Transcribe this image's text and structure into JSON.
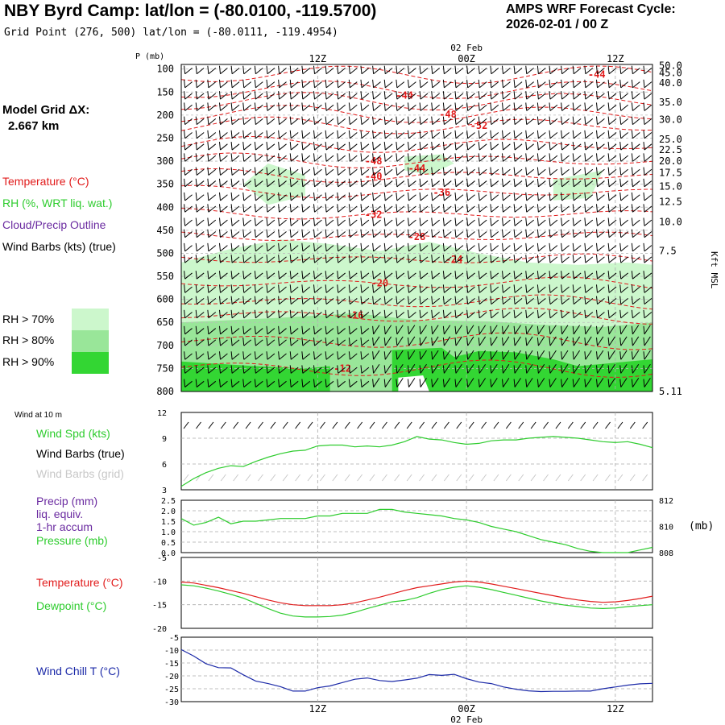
{
  "header": {
    "title": "NBY Byrd Camp:  lat/lon = (-80.0100, -119.5700)",
    "subtitle": "Grid Point (276, 500) lat/lon = (-80.0111, -119.4954)",
    "cycle_line1": "AMPS WRF Forecast Cycle:",
    "cycle_line2": "2026-02-01 / 00  Z",
    "grid_dx_line1": "Model Grid ΔX:",
    "grid_dx_line2": "2.667 km"
  },
  "legend": {
    "temperature": "Temperature (°C)",
    "rh": "RH (%, WRT liq. wat.)",
    "cloud": "Cloud/Precip Outline",
    "wind": "Wind Barbs (kts) (true)",
    "rh70": "RH > 70%",
    "rh80": "RH > 80%",
    "rh90": "RH > 90%"
  },
  "colors": {
    "temperature": "#e11b1b",
    "rh": "#2ecc2e",
    "cloud": "#6a2aa0",
    "rh70": "#ccf7cc",
    "rh80": "#99e699",
    "rh90": "#33d633",
    "wind_chill": "#1c2aa8",
    "grid_barb": "#c8c8c8"
  },
  "chart_data": [
    {
      "type": "heatmap",
      "name": "time-height cross section",
      "p_label": "P (mb)",
      "kft_label": "Kft MSL",
      "time_top_label": "02 Feb",
      "time_labels": [
        "12Z",
        "00Z",
        "12Z"
      ],
      "time_hours": [
        12,
        24,
        36
      ],
      "x_range_hours": [
        1,
        39
      ],
      "pressure_levels": [
        100,
        150,
        200,
        250,
        300,
        350,
        400,
        450,
        500,
        550,
        600,
        650,
        700,
        750,
        800
      ],
      "p_range": [
        90,
        800
      ],
      "kft_values": [
        "50.0",
        "45.0",
        "40.0",
        "35.0",
        "30.0",
        "25.0",
        "22.5",
        "20.0",
        "17.5",
        "15.0",
        "12.5",
        "10.0",
        "7.5",
        "5.11"
      ],
      "kft_pressure": [
        93,
        108,
        130,
        172,
        210,
        253,
        275,
        300,
        325,
        355,
        388,
        432,
        495,
        800
      ],
      "temperature_labels": [
        {
          "text": "-44",
          "hour": 34.5,
          "p": 112
        },
        {
          "text": "-44",
          "hour": 19.0,
          "p": 157
        },
        {
          "text": "-48",
          "hour": 22.5,
          "p": 198
        },
        {
          "text": "-52",
          "hour": 25.0,
          "p": 223
        },
        {
          "text": "-48",
          "hour": 16.5,
          "p": 300
        },
        {
          "text": "-44",
          "hour": 20.0,
          "p": 316
        },
        {
          "text": "-40",
          "hour": 16.5,
          "p": 333
        },
        {
          "text": "-36",
          "hour": 22.0,
          "p": 368
        },
        {
          "text": "-32",
          "hour": 16.5,
          "p": 416
        },
        {
          "text": "-28",
          "hour": 20.0,
          "p": 464
        },
        {
          "text": "-24",
          "hour": 23.0,
          "p": 513
        },
        {
          "text": "-20",
          "hour": 17.0,
          "p": 565
        },
        {
          "text": "-16",
          "hour": 15.0,
          "p": 635
        },
        {
          "text": "-12",
          "hour": 14.0,
          "p": 750
        }
      ]
    },
    {
      "type": "line",
      "name": "wind at 10 m",
      "label": "Wind at 10 m",
      "ylabel": "Wind Spd (kts)",
      "series_names": [
        "Wind Spd (kts)",
        "Wind Barbs (true)",
        "Wind Barbs (grid)"
      ],
      "ylim": [
        3,
        12
      ],
      "yticks": [
        3,
        6,
        9,
        12
      ],
      "x": [
        1,
        2,
        3,
        4,
        5,
        6,
        7,
        8,
        9,
        10,
        11,
        12,
        13,
        14,
        15,
        16,
        17,
        18,
        19,
        20,
        21,
        22,
        23,
        24,
        25,
        26,
        27,
        28,
        29,
        30,
        31,
        32,
        33,
        34,
        35,
        36,
        37,
        38,
        39
      ],
      "values": [
        3.4,
        4.3,
        5.0,
        5.5,
        5.8,
        5.7,
        6.3,
        6.8,
        7.2,
        7.5,
        7.6,
        8.1,
        8.2,
        8.2,
        8.0,
        8.1,
        8.0,
        8.2,
        8.6,
        9.2,
        8.9,
        8.8,
        8.5,
        8.3,
        8.4,
        8.7,
        8.8,
        8.8,
        9.0,
        9.1,
        9.2,
        9.1,
        9.0,
        8.8,
        8.6,
        8.5,
        8.6,
        8.3,
        7.9
      ]
    },
    {
      "type": "line",
      "name": "precip and pressure",
      "labels": [
        "Precip (mm)",
        "liq. equiv.",
        "1-hr accum",
        "Pressure (mb)"
      ],
      "left_ylim": [
        0.0,
        2.5
      ],
      "left_ticks": [
        "0.0",
        "0.5",
        "1.0",
        "1.5",
        "2.0",
        "2.5"
      ],
      "right_ylim": [
        808,
        812
      ],
      "right_ticks": [
        "808",
        "810",
        "812"
      ],
      "right_unit": "(mb)",
      "x": [
        1,
        2,
        3,
        4,
        5,
        6,
        7,
        8,
        9,
        10,
        11,
        12,
        13,
        14,
        15,
        16,
        17,
        18,
        19,
        20,
        21,
        22,
        23,
        24,
        25,
        26,
        27,
        28,
        29,
        30,
        31,
        32,
        33,
        34,
        35,
        36,
        37,
        38,
        39
      ],
      "pressure": [
        810.6,
        810.1,
        810.3,
        810.7,
        810.2,
        810.4,
        810.4,
        810.5,
        810.6,
        810.6,
        810.6,
        810.8,
        810.8,
        811.0,
        811.0,
        811.0,
        811.3,
        811.3,
        811.1,
        811.0,
        810.9,
        810.8,
        810.6,
        810.5,
        810.3,
        810.0,
        809.8,
        809.6,
        809.3,
        809.0,
        808.8,
        808.6,
        808.3,
        808.1,
        808.0,
        808.0,
        808.0,
        808.2,
        808.4
      ]
    },
    {
      "type": "line",
      "name": "temperature and dewpoint",
      "series_names": [
        "Temperature (°C)",
        "Dewpoint (°C)"
      ],
      "ylim": [
        -20,
        -5
      ],
      "yticks": [
        -20,
        -15,
        -10,
        -5
      ],
      "x": [
        1,
        2,
        3,
        4,
        5,
        6,
        7,
        8,
        9,
        10,
        11,
        12,
        13,
        14,
        15,
        16,
        17,
        18,
        19,
        20,
        21,
        22,
        23,
        24,
        25,
        26,
        27,
        28,
        29,
        30,
        31,
        32,
        33,
        34,
        35,
        36,
        37,
        38,
        39
      ],
      "temperature": [
        -10.2,
        -10.4,
        -10.9,
        -11.4,
        -12.0,
        -12.6,
        -13.3,
        -14.0,
        -14.6,
        -15.0,
        -15.2,
        -15.2,
        -15.2,
        -15.0,
        -14.6,
        -14.0,
        -13.4,
        -12.7,
        -12.0,
        -11.4,
        -11.0,
        -10.6,
        -10.2,
        -10.0,
        -10.2,
        -10.6,
        -11.1,
        -11.6,
        -12.1,
        -12.6,
        -13.1,
        -13.6,
        -14.0,
        -14.3,
        -14.5,
        -14.4,
        -14.1,
        -13.7,
        -13.2
      ],
      "dewpoint": [
        -10.8,
        -11.0,
        -11.5,
        -12.1,
        -12.8,
        -13.6,
        -14.7,
        -15.8,
        -16.8,
        -17.4,
        -17.6,
        -17.6,
        -17.5,
        -17.2,
        -16.6,
        -15.8,
        -15.1,
        -14.4,
        -14.1,
        -13.5,
        -12.6,
        -11.8,
        -11.3,
        -11.0,
        -11.3,
        -11.8,
        -12.4,
        -13.0,
        -13.6,
        -14.2,
        -14.7,
        -15.1,
        -15.4,
        -15.7,
        -15.8,
        -15.7,
        -15.4,
        -15.2,
        -15.0
      ]
    },
    {
      "type": "line",
      "name": "wind chill",
      "series_names": [
        "Wind Chill T (°C)"
      ],
      "ylim": [
        -30,
        -5
      ],
      "yticks": [
        -30,
        -25,
        -20,
        -15,
        -10,
        -5
      ],
      "bottom_time_labels": [
        "12Z",
        "00Z",
        "12Z"
      ],
      "bottom_date": "02 Feb",
      "x": [
        1,
        2,
        3,
        4,
        5,
        6,
        7,
        8,
        9,
        10,
        11,
        12,
        13,
        14,
        15,
        16,
        17,
        18,
        19,
        20,
        21,
        22,
        23,
        24,
        25,
        26,
        27,
        28,
        29,
        30,
        31,
        32,
        33,
        34,
        35,
        36,
        37,
        38,
        39
      ],
      "values": [
        -9.8,
        -12.3,
        -15.3,
        -16.8,
        -16.9,
        -19.6,
        -22.0,
        -23.0,
        -24.2,
        -25.9,
        -25.9,
        -24.6,
        -23.9,
        -22.6,
        -21.3,
        -20.8,
        -21.8,
        -22.2,
        -21.6,
        -20.9,
        -19.5,
        -19.8,
        -19.4,
        -21.1,
        -22.4,
        -23.0,
        -24.3,
        -25.2,
        -25.8,
        -26.1,
        -26.0,
        -26.0,
        -25.9,
        -25.9,
        -25.0,
        -24.3,
        -23.6,
        -23.1,
        -22.9
      ]
    }
  ]
}
